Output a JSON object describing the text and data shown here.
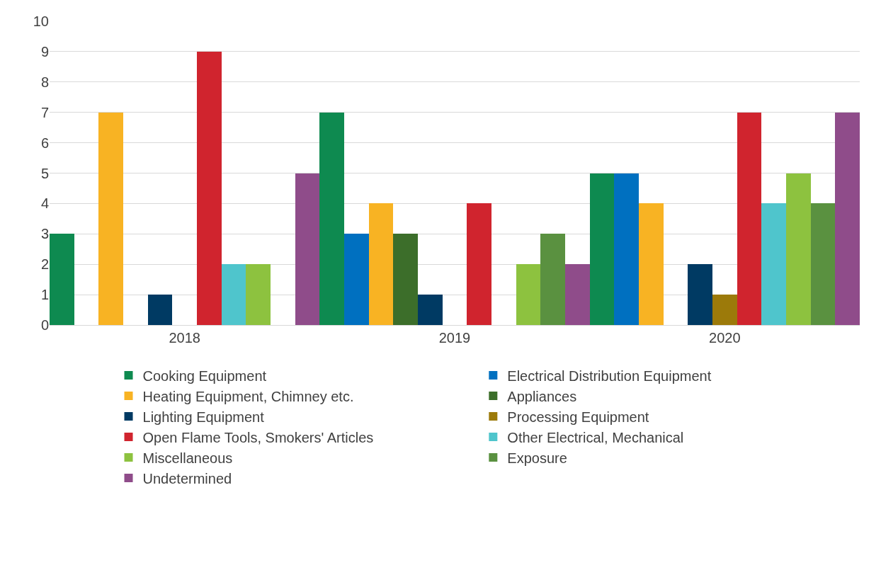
{
  "chart_data": {
    "type": "bar",
    "categories": [
      "2018",
      "2019",
      "2020"
    ],
    "series": [
      {
        "name": "Cooking Equipment",
        "color": "#0e8a50",
        "values": [
          3,
          7,
          5
        ]
      },
      {
        "name": "Electrical Distribution Equipment",
        "color": "#0070c0",
        "values": [
          0,
          3,
          5
        ]
      },
      {
        "name": "Heating Equipment, Chimney etc.",
        "color": "#f8b323",
        "values": [
          7,
          4,
          4
        ]
      },
      {
        "name": "Appliances",
        "color": "#3c6e2a",
        "values": [
          0,
          3,
          0
        ]
      },
      {
        "name": "Lighting Equipment",
        "color": "#003a63",
        "values": [
          1,
          1,
          2
        ]
      },
      {
        "name": "Processing Equipment",
        "color": "#9c7a0a",
        "values": [
          0,
          0,
          1
        ]
      },
      {
        "name": "Open Flame Tools, Smokers' Articles",
        "color": "#d0242e",
        "values": [
          9,
          4,
          7
        ]
      },
      {
        "name": "Other Electrical, Mechanical",
        "color": "#4fc5cc",
        "values": [
          2,
          0,
          4
        ]
      },
      {
        "name": "Miscellaneous",
        "color": "#8dc23f",
        "values": [
          2,
          2,
          5
        ]
      },
      {
        "name": "Exposure",
        "color": "#5a9140",
        "values": [
          0,
          3,
          4
        ]
      },
      {
        "name": "Undetermined",
        "color": "#8f4c8a",
        "values": [
          5,
          2,
          7
        ]
      }
    ],
    "ylim": [
      0,
      10
    ],
    "yticks": [
      0,
      1,
      2,
      3,
      4,
      5,
      6,
      7,
      8,
      9,
      10
    ],
    "grid": "y",
    "legend": "bottom"
  }
}
